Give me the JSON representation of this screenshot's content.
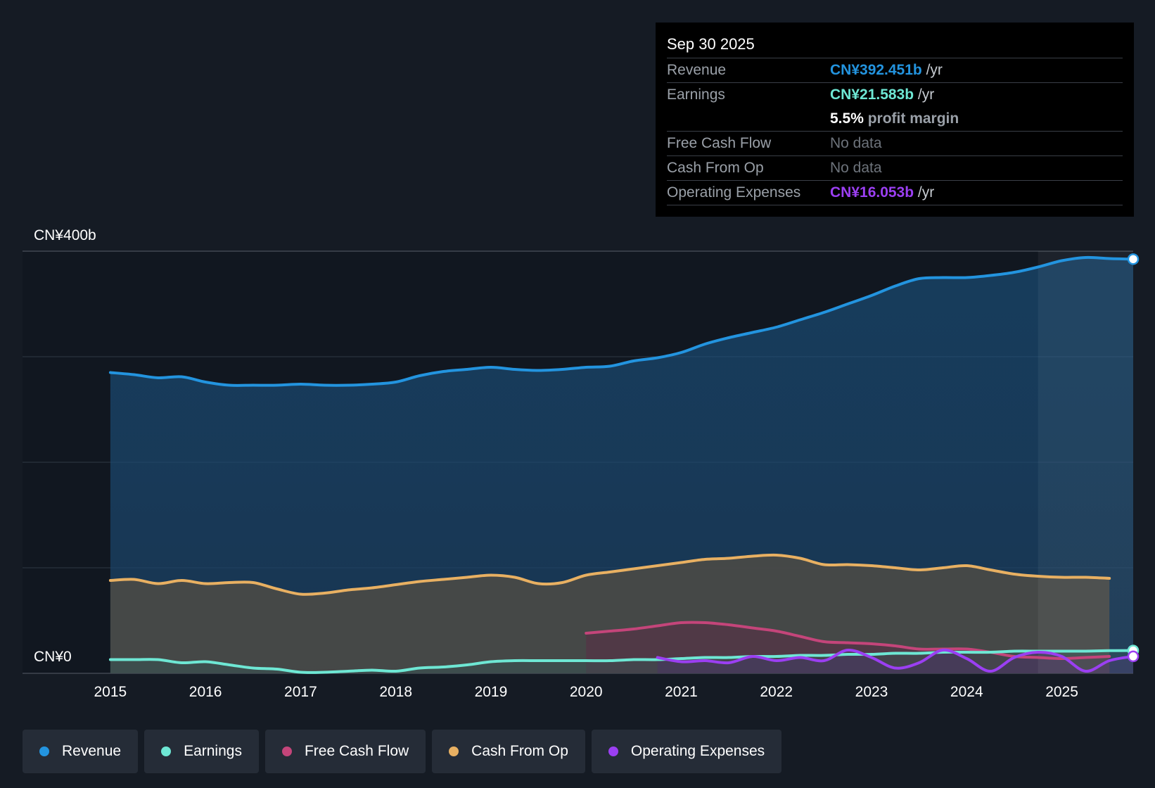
{
  "colors": {
    "background": "#151b24",
    "revenue": "#2394df",
    "earnings": "#6ee7d4",
    "free_cash_flow": "#c4457a",
    "cash_from_op": "#e8b062",
    "operating_expenses": "#9b3ff2"
  },
  "tooltip": {
    "date": "Sep 30 2025",
    "rows": [
      {
        "key": "Revenue",
        "value": "CN¥392.451b",
        "unit": "/yr"
      },
      {
        "key": "Earnings",
        "value": "CN¥21.583b",
        "unit": "/yr"
      },
      {
        "key": "",
        "value": "5.5%",
        "unit": "profit margin"
      },
      {
        "key": "Free Cash Flow",
        "value": "No data",
        "unit": ""
      },
      {
        "key": "Cash From Op",
        "value": "No data",
        "unit": ""
      },
      {
        "key": "Operating Expenses",
        "value": "CN¥16.053b",
        "unit": "/yr"
      }
    ]
  },
  "legend": [
    {
      "label": "Revenue",
      "color": "#2394df"
    },
    {
      "label": "Earnings",
      "color": "#6ee7d4"
    },
    {
      "label": "Free Cash Flow",
      "color": "#c4457a"
    },
    {
      "label": "Cash From Op",
      "color": "#e8b062"
    },
    {
      "label": "Operating Expenses",
      "color": "#9b3ff2"
    }
  ],
  "chart_data": {
    "type": "area",
    "title": "",
    "xlabel": "",
    "ylabel": "",
    "currency": "CNY",
    "units": "billions",
    "ylim": [
      0,
      400
    ],
    "xlim": [
      2014.55,
      2025.75
    ],
    "y_tick_labels": [
      {
        "value": 400,
        "label": "CN¥400b"
      },
      {
        "value": 0,
        "label": "CN¥0"
      }
    ],
    "gridlines": [
      100,
      200,
      300,
      400
    ],
    "x_ticks": [
      2015,
      2016,
      2017,
      2018,
      2019,
      2020,
      2021,
      2022,
      2023,
      2024,
      2025
    ],
    "highlight_start": 2024.75,
    "series": [
      {
        "name": "Revenue",
        "color": "#2394df",
        "points": [
          [
            2015.0,
            285
          ],
          [
            2015.25,
            283
          ],
          [
            2015.5,
            280
          ],
          [
            2015.75,
            281
          ],
          [
            2016.0,
            276
          ],
          [
            2016.25,
            273
          ],
          [
            2016.5,
            273
          ],
          [
            2016.75,
            273
          ],
          [
            2017.0,
            274
          ],
          [
            2017.25,
            273
          ],
          [
            2017.5,
            273
          ],
          [
            2017.75,
            274
          ],
          [
            2018.0,
            276
          ],
          [
            2018.25,
            282
          ],
          [
            2018.5,
            286
          ],
          [
            2018.75,
            288
          ],
          [
            2019.0,
            290
          ],
          [
            2019.25,
            288
          ],
          [
            2019.5,
            287
          ],
          [
            2019.75,
            288
          ],
          [
            2020.0,
            290
          ],
          [
            2020.25,
            291
          ],
          [
            2020.5,
            296
          ],
          [
            2020.75,
            299
          ],
          [
            2021.0,
            304
          ],
          [
            2021.25,
            312
          ],
          [
            2021.5,
            318
          ],
          [
            2021.75,
            323
          ],
          [
            2022.0,
            328
          ],
          [
            2022.25,
            335
          ],
          [
            2022.5,
            342
          ],
          [
            2022.75,
            350
          ],
          [
            2023.0,
            358
          ],
          [
            2023.25,
            367
          ],
          [
            2023.5,
            374
          ],
          [
            2023.75,
            375
          ],
          [
            2024.0,
            375
          ],
          [
            2024.25,
            377
          ],
          [
            2024.5,
            380
          ],
          [
            2024.75,
            385
          ],
          [
            2025.0,
            391
          ],
          [
            2025.25,
            394
          ],
          [
            2025.5,
            393
          ],
          [
            2025.75,
            392.45
          ]
        ]
      },
      {
        "name": "Earnings",
        "color": "#6ee7d4",
        "points": [
          [
            2015.0,
            13
          ],
          [
            2015.25,
            13
          ],
          [
            2015.5,
            13
          ],
          [
            2015.75,
            10
          ],
          [
            2016.0,
            11
          ],
          [
            2016.25,
            8
          ],
          [
            2016.5,
            5
          ],
          [
            2016.75,
            4
          ],
          [
            2017.0,
            1
          ],
          [
            2017.25,
            1
          ],
          [
            2017.5,
            2
          ],
          [
            2017.75,
            3
          ],
          [
            2018.0,
            2
          ],
          [
            2018.25,
            5
          ],
          [
            2018.5,
            6
          ],
          [
            2018.75,
            8
          ],
          [
            2019.0,
            11
          ],
          [
            2019.25,
            12
          ],
          [
            2019.5,
            12
          ],
          [
            2019.75,
            12
          ],
          [
            2020.0,
            12
          ],
          [
            2020.25,
            12
          ],
          [
            2020.5,
            13
          ],
          [
            2020.75,
            13
          ],
          [
            2021.0,
            14
          ],
          [
            2021.25,
            15
          ],
          [
            2021.5,
            15
          ],
          [
            2021.75,
            16
          ],
          [
            2022.0,
            16
          ],
          [
            2022.25,
            17
          ],
          [
            2022.5,
            17
          ],
          [
            2022.75,
            18
          ],
          [
            2023.0,
            18
          ],
          [
            2023.25,
            19
          ],
          [
            2023.5,
            19
          ],
          [
            2023.75,
            20
          ],
          [
            2024.0,
            20
          ],
          [
            2024.25,
            20
          ],
          [
            2024.5,
            21
          ],
          [
            2024.75,
            21
          ],
          [
            2025.0,
            21
          ],
          [
            2025.25,
            21
          ],
          [
            2025.5,
            21.5
          ],
          [
            2025.75,
            21.58
          ]
        ]
      },
      {
        "name": "Free Cash Flow",
        "color": "#c4457a",
        "points": [
          [
            2020.0,
            38
          ],
          [
            2020.25,
            40
          ],
          [
            2020.5,
            42
          ],
          [
            2020.75,
            45
          ],
          [
            2021.0,
            48
          ],
          [
            2021.25,
            48
          ],
          [
            2021.5,
            46
          ],
          [
            2021.75,
            43
          ],
          [
            2022.0,
            40
          ],
          [
            2022.25,
            35
          ],
          [
            2022.5,
            30
          ],
          [
            2022.75,
            29
          ],
          [
            2023.0,
            28
          ],
          [
            2023.25,
            26
          ],
          [
            2023.5,
            23
          ],
          [
            2023.75,
            23
          ],
          [
            2024.0,
            23
          ],
          [
            2024.25,
            20
          ],
          [
            2024.5,
            16
          ],
          [
            2024.75,
            15
          ],
          [
            2025.0,
            14
          ],
          [
            2025.25,
            15
          ],
          [
            2025.5,
            16
          ]
        ]
      },
      {
        "name": "Cash From Op",
        "color": "#e8b062",
        "points": [
          [
            2015.0,
            88
          ],
          [
            2015.25,
            89
          ],
          [
            2015.5,
            85
          ],
          [
            2015.75,
            88
          ],
          [
            2016.0,
            85
          ],
          [
            2016.25,
            86
          ],
          [
            2016.5,
            86
          ],
          [
            2016.75,
            80
          ],
          [
            2017.0,
            75
          ],
          [
            2017.25,
            76
          ],
          [
            2017.5,
            79
          ],
          [
            2017.75,
            81
          ],
          [
            2018.0,
            84
          ],
          [
            2018.25,
            87
          ],
          [
            2018.5,
            89
          ],
          [
            2018.75,
            91
          ],
          [
            2019.0,
            93
          ],
          [
            2019.25,
            91
          ],
          [
            2019.5,
            85
          ],
          [
            2019.75,
            86
          ],
          [
            2020.0,
            93
          ],
          [
            2020.25,
            96
          ],
          [
            2020.5,
            99
          ],
          [
            2020.75,
            102
          ],
          [
            2021.0,
            105
          ],
          [
            2021.25,
            108
          ],
          [
            2021.5,
            109
          ],
          [
            2021.75,
            111
          ],
          [
            2022.0,
            112
          ],
          [
            2022.25,
            109
          ],
          [
            2022.5,
            103
          ],
          [
            2022.75,
            103
          ],
          [
            2023.0,
            102
          ],
          [
            2023.25,
            100
          ],
          [
            2023.5,
            98
          ],
          [
            2023.75,
            100
          ],
          [
            2024.0,
            102
          ],
          [
            2024.25,
            98
          ],
          [
            2024.5,
            94
          ],
          [
            2024.75,
            92
          ],
          [
            2025.0,
            91
          ],
          [
            2025.25,
            91
          ],
          [
            2025.5,
            90
          ]
        ]
      },
      {
        "name": "Operating Expenses",
        "color": "#9b3ff2",
        "points": [
          [
            2020.75,
            15
          ],
          [
            2021.0,
            11
          ],
          [
            2021.25,
            12
          ],
          [
            2021.5,
            10
          ],
          [
            2021.75,
            16
          ],
          [
            2022.0,
            12
          ],
          [
            2022.25,
            15
          ],
          [
            2022.5,
            12
          ],
          [
            2022.75,
            22
          ],
          [
            2023.0,
            15
          ],
          [
            2023.25,
            5
          ],
          [
            2023.5,
            10
          ],
          [
            2023.75,
            22
          ],
          [
            2024.0,
            14
          ],
          [
            2024.25,
            2
          ],
          [
            2024.5,
            15
          ],
          [
            2024.75,
            20
          ],
          [
            2025.0,
            16
          ],
          [
            2025.25,
            2
          ],
          [
            2025.5,
            12
          ],
          [
            2025.75,
            16.05
          ]
        ]
      }
    ]
  }
}
